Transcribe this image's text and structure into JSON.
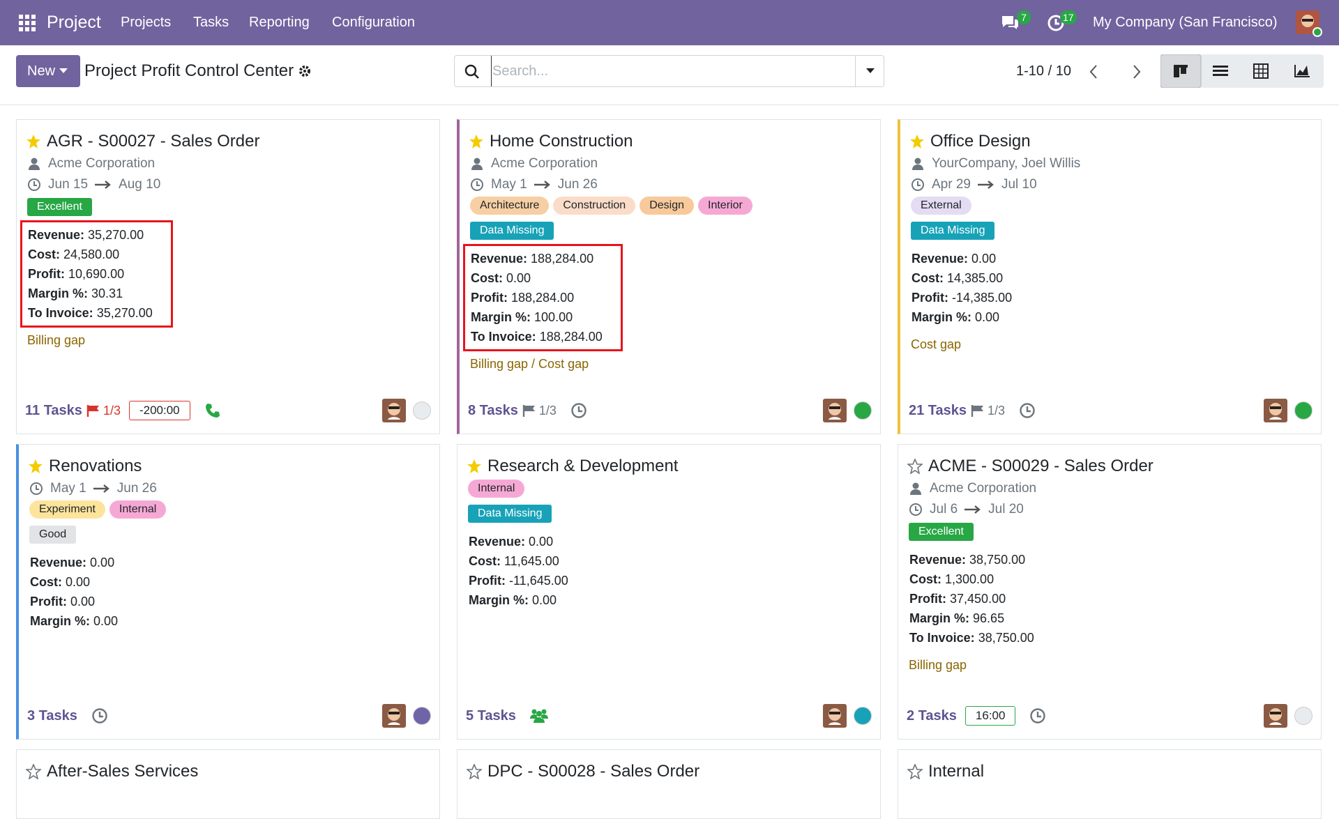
{
  "navbar": {
    "app": "Project",
    "menu": [
      "Projects",
      "Tasks",
      "Reporting",
      "Configuration"
    ],
    "messages": "7",
    "activities": "17",
    "company": "My Company (San Francisco)"
  },
  "control": {
    "new": "New",
    "title": "Project Profit Control Center",
    "search_placeholder": "Search...",
    "pager": "1-10 / 10"
  },
  "cards": [
    {
      "starred": true,
      "title": "AGR - S00027 - Sales Order",
      "customer": "Acme Corporation",
      "date_start": "Jun 15",
      "date_end": "Aug 10",
      "tags": [],
      "badges": [
        {
          "label": "Excellent",
          "color": "#28a745",
          "text_color": "#ffffff"
        }
      ],
      "highlighted": true,
      "fields": [
        {
          "label": "Revenue:",
          "value": "35,270.00"
        },
        {
          "label": "Cost:",
          "value": "24,580.00"
        },
        {
          "label": "Profit:",
          "value": "10,690.00"
        },
        {
          "label": "Margin %:",
          "value": "30.31"
        },
        {
          "label": "To Invoice:",
          "value": "35,270.00"
        }
      ],
      "note": "Billing gap",
      "tasks": "11 Tasks",
      "milestone": "1/3",
      "milestone_color": "#d9342b",
      "timer": "-200:00",
      "timer_color": "#d9342b",
      "icon": "phone",
      "status_color": "#e9ecef",
      "border_color": null
    },
    {
      "starred": true,
      "title": "Home Construction",
      "customer": "Acme Corporation",
      "date_start": "May 1",
      "date_end": "Jun 26",
      "tags": [
        {
          "label": "Architecture",
          "color": "#f7cfa4"
        },
        {
          "label": "Construction",
          "color": "#fadcc8"
        },
        {
          "label": "Design",
          "color": "#f7c99b"
        },
        {
          "label": "Interior",
          "color": "#f6a8d4"
        }
      ],
      "badges": [
        {
          "label": "Data Missing",
          "color": "#17a2b8",
          "text_color": "#ffffff"
        }
      ],
      "highlighted": true,
      "fields": [
        {
          "label": "Revenue:",
          "value": "188,284.00"
        },
        {
          "label": "Cost:",
          "value": "0.00"
        },
        {
          "label": "Profit:",
          "value": "188,284.00"
        },
        {
          "label": "Margin %:",
          "value": "100.00"
        },
        {
          "label": "To Invoice:",
          "value": "188,284.00"
        }
      ],
      "note": "Billing gap / Cost gap",
      "tasks": "8 Tasks",
      "milestone": "1/3",
      "milestone_color": "#6c757d",
      "timer": null,
      "timer_color": null,
      "icon": "clock",
      "status_color": "#28a745",
      "border_color": "#a2649c"
    },
    {
      "starred": true,
      "title": "Office Design",
      "customer": "YourCompany, Joel Willis",
      "date_start": "Apr 29",
      "date_end": "Jul 10",
      "tags": [
        {
          "label": "External",
          "color": "#e4dcf3"
        }
      ],
      "badges": [
        {
          "label": "Data Missing",
          "color": "#17a2b8",
          "text_color": "#ffffff"
        }
      ],
      "highlighted": false,
      "fields": [
        {
          "label": "Revenue:",
          "value": "0.00"
        },
        {
          "label": "Cost:",
          "value": "14,385.00"
        },
        {
          "label": "Profit:",
          "value": "-14,385.00"
        },
        {
          "label": "Margin %:",
          "value": "0.00"
        }
      ],
      "note": "Cost gap",
      "tasks": "21 Tasks",
      "milestone": "1/3",
      "milestone_color": "#6c757d",
      "timer": null,
      "timer_color": null,
      "icon": "clock",
      "status_color": "#28a745",
      "border_color": "#f0c03c"
    },
    {
      "starred": true,
      "title": "Renovations",
      "customer": null,
      "date_start": "May 1",
      "date_end": "Jun 26",
      "tags": [
        {
          "label": "Experiment",
          "color": "#fde49c"
        },
        {
          "label": "Internal",
          "color": "#f6a8d4"
        }
      ],
      "badges": [
        {
          "label": "Good",
          "color": "#e2e3e5",
          "text_color": "#212529"
        }
      ],
      "highlighted": false,
      "fields": [
        {
          "label": "Revenue:",
          "value": "0.00"
        },
        {
          "label": "Cost:",
          "value": "0.00"
        },
        {
          "label": "Profit:",
          "value": "0.00"
        },
        {
          "label": "Margin %:",
          "value": "0.00"
        }
      ],
      "note": null,
      "tasks": "3 Tasks",
      "milestone": null,
      "milestone_color": null,
      "timer": null,
      "timer_color": null,
      "icon": "clock",
      "status_color": "#6f64a8",
      "border_color": "#4a90e2"
    },
    {
      "starred": true,
      "title": "Research & Development",
      "customer": null,
      "date_start": null,
      "date_end": null,
      "tags": [
        {
          "label": "Internal",
          "color": "#f6a8d4"
        }
      ],
      "badges": [
        {
          "label": "Data Missing",
          "color": "#17a2b8",
          "text_color": "#ffffff"
        }
      ],
      "highlighted": false,
      "fields": [
        {
          "label": "Revenue:",
          "value": "0.00"
        },
        {
          "label": "Cost:",
          "value": "11,645.00"
        },
        {
          "label": "Profit:",
          "value": "-11,645.00"
        },
        {
          "label": "Margin %:",
          "value": "0.00"
        }
      ],
      "note": null,
      "tasks": "5 Tasks",
      "milestone": null,
      "milestone_color": null,
      "timer": null,
      "timer_color": null,
      "icon": "people",
      "status_color": "#17a2b8",
      "border_color": null
    },
    {
      "starred": false,
      "title": "ACME - S00029 - Sales Order",
      "customer": "Acme Corporation",
      "date_start": "Jul 6",
      "date_end": "Jul 20",
      "tags": [],
      "badges": [
        {
          "label": "Excellent",
          "color": "#28a745",
          "text_color": "#ffffff"
        }
      ],
      "highlighted": false,
      "fields": [
        {
          "label": "Revenue:",
          "value": "38,750.00"
        },
        {
          "label": "Cost:",
          "value": "1,300.00"
        },
        {
          "label": "Profit:",
          "value": "37,450.00"
        },
        {
          "label": "Margin %:",
          "value": "96.65"
        },
        {
          "label": "To Invoice:",
          "value": "38,750.00"
        }
      ],
      "note": "Billing gap",
      "tasks": "2 Tasks",
      "milestone": null,
      "milestone_color": null,
      "timer": "16:00",
      "timer_color": "#28a745",
      "icon": "clock",
      "status_color": "#e9ecef",
      "border_color": null
    },
    {
      "starred": false,
      "title": "After-Sales Services"
    },
    {
      "starred": false,
      "title": "DPC - S00028 - Sales Order"
    },
    {
      "starred": false,
      "title": "Internal"
    }
  ]
}
